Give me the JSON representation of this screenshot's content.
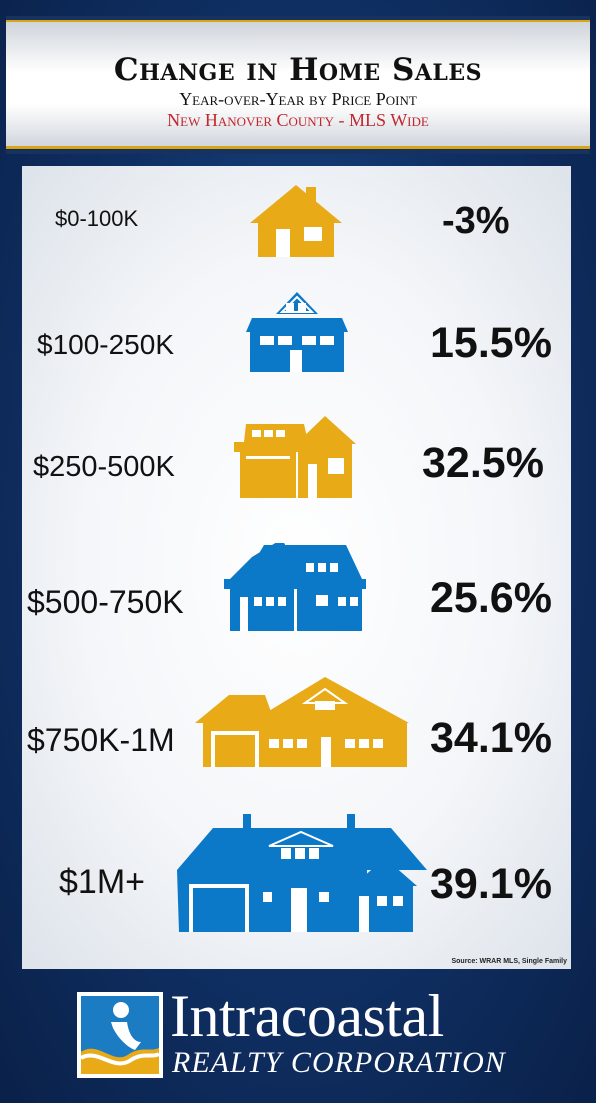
{
  "header": {
    "title": "Change in Home Sales",
    "subtitle": "Year-over-Year by Price Point",
    "region": "New Hanover County - MLS Wide"
  },
  "colors": {
    "gold": "#e8aa16",
    "blue": "#0b78c8",
    "navy": "#0f2f63",
    "red": "#c1272d"
  },
  "chart_data": {
    "type": "table",
    "title": "Change in Home Sales",
    "categories": [
      "$0-100K",
      "$100-250K",
      "$250-500K",
      "$500-750K",
      "$750K-1M",
      "$1M+"
    ],
    "values": [
      -3,
      15.5,
      32.5,
      25.6,
      34.1,
      39.1
    ],
    "value_labels": [
      "-3%",
      "15.5%",
      "32.5%",
      "25.6%",
      "34.1%",
      "39.1%"
    ],
    "icons": [
      "house-small-icon",
      "house-two-story-icon",
      "house-garage-icon",
      "house-large-icon",
      "house-wide-icon",
      "house-mansion-icon"
    ],
    "icon_colors": [
      "#e8aa16",
      "#0b78c8",
      "#e8aa16",
      "#0b78c8",
      "#e8aa16",
      "#0b78c8"
    ]
  },
  "source": "Source: WRAR MLS, Single Family",
  "logo": {
    "name": "Intracoastal",
    "sub": "REALTY CORPORATION"
  }
}
